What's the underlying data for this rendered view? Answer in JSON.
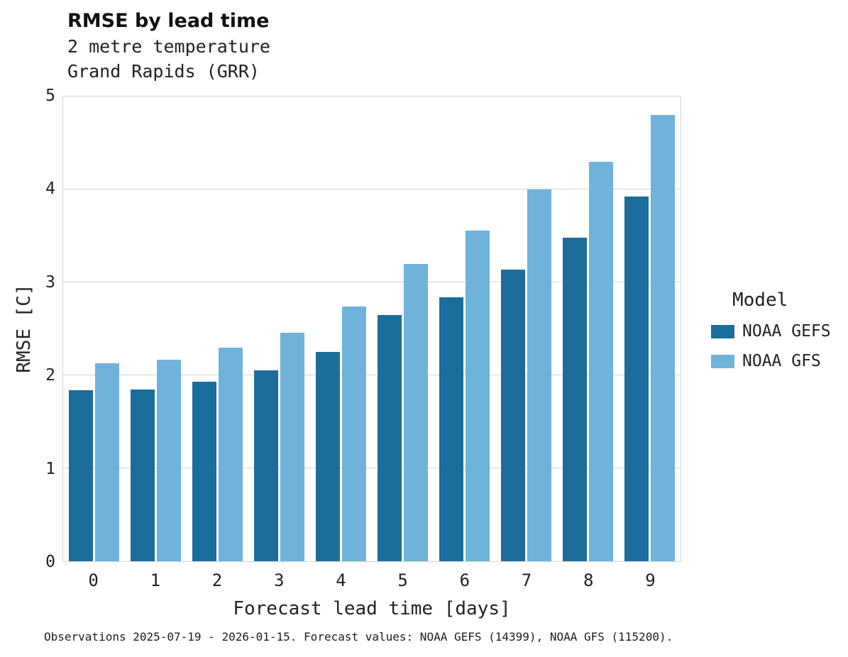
{
  "title": "RMSE by lead time",
  "subtitle_line1": "2 metre temperature",
  "subtitle_line2": "Grand Rapids (GRR)",
  "caption": "Observations 2025-07-19 - 2026-01-15. Forecast values: NOAA GEFS (14399), NOAA GFS (115200).",
  "colors": {
    "gefs_dark_blue": "#1b6d9c",
    "gfs_light_blue": "#6fb3da",
    "gridline_gray": "#d6d6d6"
  },
  "legend": {
    "title": "Model",
    "entries": [
      {
        "label": "NOAA GEFS",
        "color": "#1b6d9c"
      },
      {
        "label": "NOAA GFS",
        "color": "#6fb3da"
      }
    ]
  },
  "chart_data": {
    "type": "bar",
    "categories": [
      "0",
      "1",
      "2",
      "3",
      "4",
      "5",
      "6",
      "7",
      "8",
      "9"
    ],
    "series": [
      {
        "name": "NOAA GEFS",
        "color": "#1b6d9c",
        "values": [
          1.84,
          1.85,
          1.93,
          2.05,
          2.25,
          2.65,
          2.84,
          3.14,
          3.48,
          3.92
        ]
      },
      {
        "name": "NOAA GFS",
        "color": "#6fb3da",
        "values": [
          2.13,
          2.17,
          2.3,
          2.46,
          2.74,
          3.2,
          3.56,
          4.0,
          4.3,
          4.8
        ]
      }
    ],
    "title": "RMSE by lead time",
    "xlabel": "Forecast lead time [days]",
    "ylabel": "RMSE [C]",
    "ylim": [
      0,
      5
    ],
    "yticks": [
      0,
      1,
      2,
      3,
      4,
      5
    ],
    "grid": "horizontal",
    "legend_position": "right"
  }
}
